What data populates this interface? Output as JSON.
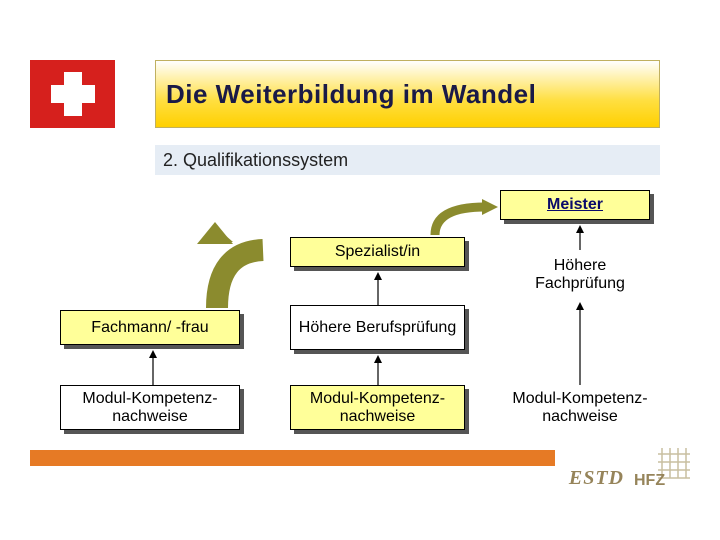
{
  "title": "Die Weiterbildung im Wandel",
  "subtitle": "2.  Qualifikationssystem",
  "boxes": {
    "meister": "Meister",
    "spezialist": "Spezialist/in",
    "hoehere_fachpruefung": "Höhere Fachprüfung",
    "fachmann": "Fachmann/ -frau",
    "hoehere_berufspruefung": "Höhere Berufsprüfung",
    "modul1": "Modul-Kompetenz-\nnachweise",
    "modul2": "Modul-Kompetenz-\nnachweise",
    "modul3": "Modul-Kompetenz-\nnachweise"
  },
  "colors": {
    "swiss_red": "#d6201d",
    "gradient_yellow": "#ffd000",
    "box_yellow": "#ffff99",
    "box_shadow": "#555555",
    "arrow_olive": "#8b8b2e",
    "footer_orange": "#e67a25",
    "logo_tan": "#96845a",
    "subtitle_bg": "#e6edf5"
  },
  "logos": {
    "estd": "ESTD",
    "hfz": "HFZ"
  },
  "diagram": {
    "type": "flowchart",
    "arrows": [
      {
        "from": "modul1",
        "to": "fachmann"
      },
      {
        "from": "modul2",
        "to": "hoehere_berufspruefung"
      },
      {
        "from": "hoehere_berufspruefung",
        "to": "spezialist"
      },
      {
        "from": "modul3",
        "to": "hoehere_fachpruefung"
      },
      {
        "from": "hoehere_fachpruefung",
        "to": "meister"
      },
      {
        "from": "spezialist",
        "to": "meister",
        "style": "curved"
      },
      {
        "from": "fachmann",
        "to": "spezialist",
        "style": "big-curved"
      }
    ]
  }
}
